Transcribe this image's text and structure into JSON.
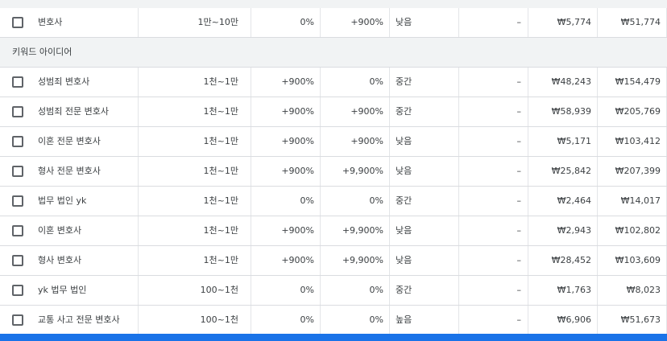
{
  "colors": {
    "accent": "#1a73e8",
    "section_bg": "#f1f3f4",
    "divider": "#dadce0"
  },
  "top_row": {
    "keyword": "변호사",
    "avg": "1만~10만",
    "change_3m": "0%",
    "yoy": "+900%",
    "competition": "낮음",
    "ad_share": "–",
    "bid_low": "₩5,774",
    "bid_high": "₩51,774"
  },
  "section": {
    "label": "키워드 아이디어"
  },
  "rows": [
    {
      "keyword": "성범죄 변호사",
      "avg": "1천~1만",
      "change_3m": "+900%",
      "yoy": "0%",
      "competition": "중간",
      "ad_share": "–",
      "bid_low": "₩48,243",
      "bid_high": "₩154,479"
    },
    {
      "keyword": "성범죄 전문 변호사",
      "avg": "1천~1만",
      "change_3m": "+900%",
      "yoy": "+900%",
      "competition": "중간",
      "ad_share": "–",
      "bid_low": "₩58,939",
      "bid_high": "₩205,769"
    },
    {
      "keyword": "이혼 전문 변호사",
      "avg": "1천~1만",
      "change_3m": "+900%",
      "yoy": "+900%",
      "competition": "낮음",
      "ad_share": "–",
      "bid_low": "₩5,171",
      "bid_high": "₩103,412"
    },
    {
      "keyword": "형사 전문 변호사",
      "avg": "1천~1만",
      "change_3m": "+900%",
      "yoy": "+9,900%",
      "competition": "낮음",
      "ad_share": "–",
      "bid_low": "₩25,842",
      "bid_high": "₩207,399"
    },
    {
      "keyword": "법무 법인 yk",
      "avg": "1천~1만",
      "change_3m": "0%",
      "yoy": "0%",
      "competition": "중간",
      "ad_share": "–",
      "bid_low": "₩2,464",
      "bid_high": "₩14,017"
    },
    {
      "keyword": "이혼 변호사",
      "avg": "1천~1만",
      "change_3m": "+900%",
      "yoy": "+9,900%",
      "competition": "낮음",
      "ad_share": "–",
      "bid_low": "₩2,943",
      "bid_high": "₩102,802"
    },
    {
      "keyword": "형사 변호사",
      "avg": "1천~1만",
      "change_3m": "+900%",
      "yoy": "+9,900%",
      "competition": "낮음",
      "ad_share": "–",
      "bid_low": "₩28,452",
      "bid_high": "₩103,609"
    },
    {
      "keyword": "yk 법무 법인",
      "avg": "100~1천",
      "change_3m": "0%",
      "yoy": "0%",
      "competition": "중간",
      "ad_share": "–",
      "bid_low": "₩1,763",
      "bid_high": "₩8,023"
    },
    {
      "keyword": "교통 사고 전문 변호사",
      "avg": "100~1천",
      "change_3m": "0%",
      "yoy": "0%",
      "competition": "높음",
      "ad_share": "–",
      "bid_low": "₩6,906",
      "bid_high": "₩51,673"
    }
  ]
}
